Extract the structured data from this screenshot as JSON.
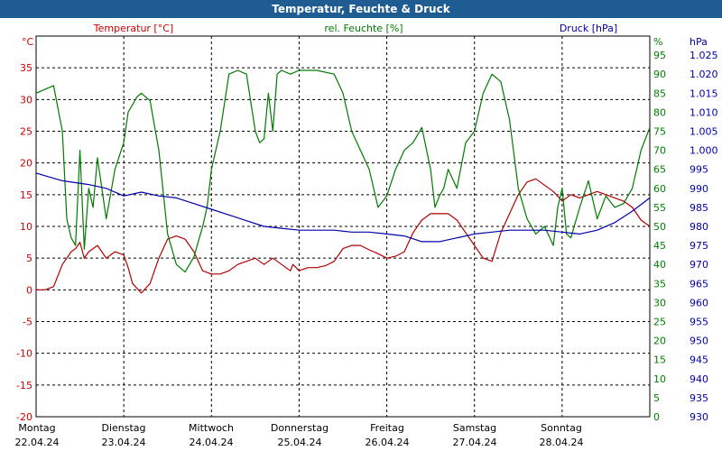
{
  "window": {
    "title": "Temperatur, Feuchte & Druck"
  },
  "chart_data": {
    "type": "line",
    "title": "Temperatur, Feuchte & Druck",
    "grid": true,
    "axes": {
      "left": {
        "label": "Temperatur [°C]",
        "unit": "°C",
        "min": -20,
        "max": 40,
        "ticks": [
          -20,
          -15,
          -10,
          -5,
          0,
          5,
          10,
          15,
          20,
          25,
          30,
          35
        ],
        "color": "#cc0000"
      },
      "right1": {
        "label": "rel. Feuchte [%]",
        "unit": "%",
        "min": 0,
        "max": 100,
        "ticks": [
          0,
          5,
          10,
          15,
          20,
          25,
          30,
          35,
          40,
          45,
          50,
          55,
          60,
          65,
          70,
          75,
          80,
          85,
          90,
          95
        ],
        "color": "#008000"
      },
      "right2": {
        "label": "Druck [hPa]",
        "unit": "hPa",
        "min": 930,
        "max": 1030,
        "ticks": [
          "930",
          "935",
          "940",
          "945",
          "950",
          "955",
          "960",
          "965",
          "970",
          "975",
          "980",
          "985",
          "990",
          "995",
          "1.000",
          "1.005",
          "1.010",
          "1.015",
          "1.020",
          "1.025"
        ],
        "color": "#0000aa"
      }
    },
    "x": {
      "min": 0,
      "max": 7,
      "unit": "days"
    },
    "days": [
      {
        "name": "Montag",
        "date": "22.04.24"
      },
      {
        "name": "Dienstag",
        "date": "23.04.24"
      },
      {
        "name": "Mittwoch",
        "date": "24.04.24"
      },
      {
        "name": "Donnerstag",
        "date": "25.04.24"
      },
      {
        "name": "Freitag",
        "date": "26.04.24"
      },
      {
        "name": "Samstag",
        "date": "27.04.24"
      },
      {
        "name": "Sonntag",
        "date": "28.04.24"
      }
    ],
    "series": [
      {
        "name": "Temperatur",
        "axis": "left",
        "color": "#b00000",
        "x": [
          0,
          0.1,
          0.2,
          0.3,
          0.4,
          0.45,
          0.5,
          0.55,
          0.6,
          0.7,
          0.8,
          0.9,
          1.0,
          1.05,
          1.1,
          1.2,
          1.3,
          1.4,
          1.5,
          1.6,
          1.7,
          1.8,
          1.9,
          2.0,
          2.1,
          2.2,
          2.3,
          2.5,
          2.6,
          2.7,
          2.8,
          2.9,
          2.93,
          3.0,
          3.1,
          3.2,
          3.3,
          3.4,
          3.5,
          3.6,
          3.7,
          3.8,
          3.9,
          4.0,
          4.1,
          4.2,
          4.3,
          4.4,
          4.5,
          4.6,
          4.7,
          4.8,
          4.9,
          5.0,
          5.1,
          5.2,
          5.3,
          5.4,
          5.5,
          5.6,
          5.7,
          5.8,
          5.9,
          6.0,
          6.1,
          6.2,
          6.3,
          6.4,
          6.5,
          6.6,
          6.7,
          6.8,
          6.9,
          7.0
        ],
        "values": [
          0,
          0,
          0.5,
          4,
          6,
          6.5,
          7.5,
          5,
          6,
          7,
          5,
          6,
          5.5,
          3.5,
          1,
          -0.5,
          1,
          5,
          8,
          8.5,
          8,
          6,
          3,
          2.5,
          2.5,
          3,
          4,
          5,
          4,
          5,
          4,
          3,
          4,
          3,
          3.5,
          3.5,
          3.8,
          4.5,
          6.5,
          7,
          7,
          6.3,
          5.7,
          5,
          5.3,
          6,
          9,
          11,
          12,
          12,
          12,
          11,
          9,
          7,
          5,
          4.5,
          9,
          12,
          15,
          17,
          17.5,
          16.5,
          15.5,
          14,
          15,
          14.5,
          15,
          15.5,
          15,
          14.5,
          14,
          13,
          11,
          10
        ]
      },
      {
        "name": "rel. Feuchte",
        "axis": "right1",
        "color": "#007a00",
        "x": [
          0,
          0.1,
          0.2,
          0.3,
          0.35,
          0.4,
          0.45,
          0.5,
          0.55,
          0.6,
          0.65,
          0.7,
          0.8,
          0.9,
          1.0,
          1.05,
          1.1,
          1.15,
          1.2,
          1.3,
          1.4,
          1.5,
          1.6,
          1.7,
          1.8,
          1.85,
          1.9,
          1.95,
          2.0,
          2.05,
          2.1,
          2.2,
          2.3,
          2.4,
          2.5,
          2.55,
          2.6,
          2.65,
          2.7,
          2.75,
          2.8,
          2.9,
          3.0,
          3.2,
          3.4,
          3.5,
          3.6,
          3.7,
          3.8,
          3.9,
          4.0,
          4.1,
          4.2,
          4.3,
          4.4,
          4.5,
          4.55,
          4.6,
          4.65,
          4.7,
          4.8,
          4.9,
          5.0,
          5.1,
          5.2,
          5.3,
          5.4,
          5.5,
          5.6,
          5.7,
          5.8,
          5.9,
          5.95,
          6.0,
          6.05,
          6.1,
          6.2,
          6.3,
          6.4,
          6.5,
          6.6,
          6.7,
          6.8,
          6.9,
          7.0
        ],
        "values": [
          85,
          86,
          87,
          75,
          52,
          47,
          45,
          70,
          44,
          60,
          55,
          68,
          52,
          65,
          72,
          80,
          82,
          84,
          85,
          83,
          70,
          48,
          40,
          38,
          42,
          46,
          50,
          55,
          65,
          70,
          75,
          90,
          91,
          90,
          75,
          72,
          73,
          85,
          75,
          90,
          91,
          90,
          91,
          91,
          90,
          85,
          75,
          70,
          65,
          55,
          58,
          65,
          70,
          72,
          76,
          65,
          55,
          58,
          60,
          65,
          60,
          72,
          75,
          85,
          90,
          88,
          78,
          60,
          52,
          48,
          50,
          45,
          55,
          60,
          48,
          47,
          55,
          62,
          52,
          58,
          55,
          56,
          60,
          70,
          76
        ]
      },
      {
        "name": "Druck",
        "axis": "right2",
        "color": "#0000aa",
        "x": [
          0,
          0.3,
          0.6,
          0.8,
          1.0,
          1.2,
          1.4,
          1.6,
          1.8,
          2.0,
          2.2,
          2.4,
          2.6,
          2.8,
          3.0,
          3.2,
          3.4,
          3.6,
          3.8,
          4.0,
          4.2,
          4.4,
          4.6,
          4.8,
          5.0,
          5.2,
          5.4,
          5.6,
          5.8,
          6.0,
          6.2,
          6.4,
          6.6,
          6.8,
          7.0
        ],
        "values": [
          994,
          992,
          991,
          990,
          988,
          989,
          988,
          987.5,
          986,
          984.5,
          983,
          981.5,
          980,
          979.5,
          979,
          979,
          979,
          978.5,
          978.5,
          978,
          977.5,
          976,
          976,
          977,
          978,
          978.5,
          979,
          979,
          979,
          978.5,
          978,
          979,
          981,
          984,
          987.5
        ]
      }
    ]
  }
}
